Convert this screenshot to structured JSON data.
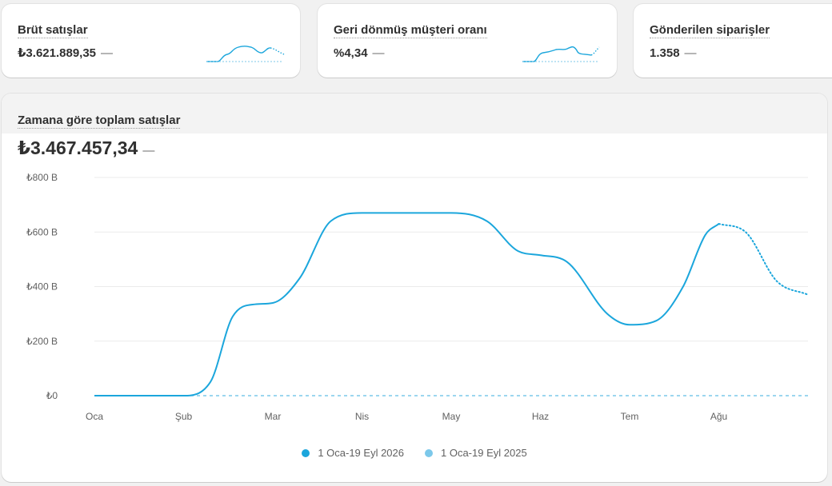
{
  "metrics": [
    {
      "title": "Brüt satışlar",
      "value": "₺3.621.889,35",
      "change": "—"
    },
    {
      "title": "Geri dönmüş müşteri oranı",
      "value": "%4,34",
      "change": "—"
    },
    {
      "title": "Gönderilen siparişler",
      "value": "1.358",
      "change": "—"
    }
  ],
  "main": {
    "title": "Zamana göre toplam satışlar",
    "value": "₺3.467.457,34",
    "change": "—"
  },
  "colors": {
    "primary_series": "#1ba6dc",
    "comparison_series": "#7cc8ea",
    "grid": "#ebebeb"
  },
  "chart_data": {
    "type": "line",
    "title": "Zamana göre toplam satışlar",
    "categories": [
      "Oca",
      "Şub",
      "Mar",
      "Nis",
      "May",
      "Haz",
      "Tem",
      "Ağu"
    ],
    "y_tick_labels": [
      "₺0",
      "₺200 B",
      "₺400 B",
      "₺600 B",
      "₺800 B"
    ],
    "ylim": [
      0,
      800000
    ],
    "grid": true,
    "legend_position": "bottom-center",
    "series": [
      {
        "name": "1 Oca-19 Eyl 2026",
        "color": "#1ba6dc",
        "style": "solid, dotted after Ağu",
        "x": [
          0,
          1,
          1.3,
          1.55,
          1.8,
          2.0,
          2.3,
          2.65,
          3.0,
          3.5,
          4.0,
          4.4,
          4.75,
          5.0,
          5.3,
          5.75,
          6.0,
          6.3,
          6.6,
          6.85,
          7.0,
          7.3,
          7.65,
          8.0
        ],
        "values": [
          0,
          0,
          50000,
          290000,
          335000,
          340000,
          430000,
          640000,
          670000,
          670000,
          670000,
          640000,
          530000,
          515000,
          490000,
          300000,
          260000,
          275000,
          400000,
          590000,
          630000,
          600000,
          420000,
          370000
        ],
        "dotted_from_x": 7.0
      },
      {
        "name": "1 Oca-19 Eyl 2025",
        "color": "#7cc8ea",
        "style": "dashed",
        "x": [
          0,
          8.0
        ],
        "values": [
          0,
          0
        ]
      }
    ]
  }
}
